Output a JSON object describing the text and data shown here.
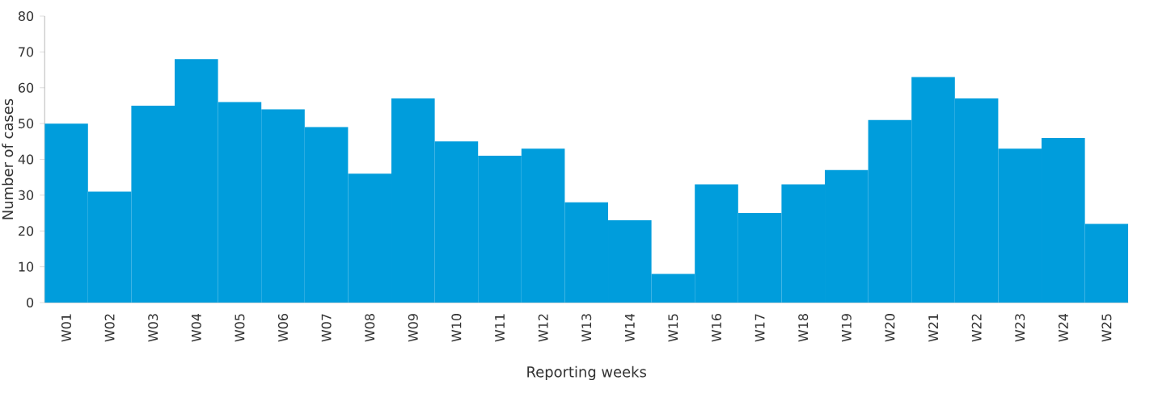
{
  "chart_data": {
    "type": "bar",
    "xlabel": "Reporting weeks",
    "ylabel": "Number of cases",
    "categories": [
      "W01",
      "W02",
      "W03",
      "W04",
      "W05",
      "W06",
      "W07",
      "W08",
      "W09",
      "W10",
      "W11",
      "W12",
      "W13",
      "W14",
      "W15",
      "W16",
      "W17",
      "W18",
      "W19",
      "W20",
      "W21",
      "W22",
      "W23",
      "W24",
      "W25"
    ],
    "values": [
      50,
      31,
      55,
      68,
      56,
      54,
      49,
      36,
      57,
      45,
      41,
      43,
      28,
      23,
      8,
      33,
      25,
      33,
      37,
      51,
      63,
      57,
      43,
      46,
      22
    ],
    "color": "#009ddc",
    "ylim": [
      0,
      80
    ],
    "yticks": [
      0,
      10,
      20,
      30,
      40,
      50,
      60,
      70,
      80
    ],
    "grid": false
  }
}
